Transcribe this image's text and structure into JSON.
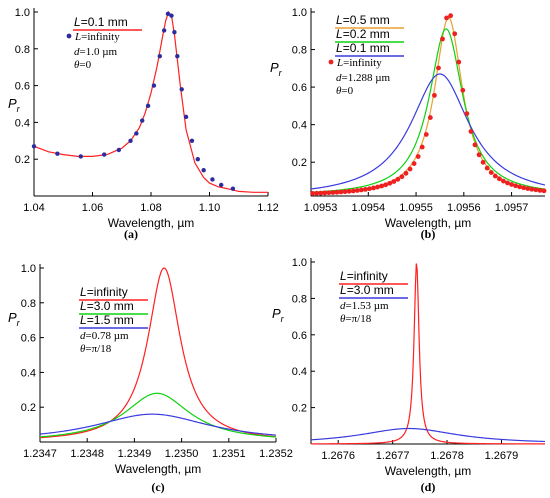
{
  "colors": {
    "red": "#ff2020",
    "green": "#10d010",
    "blue": "#3a3ae0",
    "orange": "#e8a030",
    "dot_blue": "#2c2ca0",
    "dot_red": "#ee2020",
    "axis": "#000000"
  },
  "chart_data": [
    {
      "type": "line",
      "panel_label": "(a)",
      "xlabel": "Wavelength, µm",
      "ylabel": "P",
      "ylabel_sub": "r",
      "xlim": [
        1.04,
        1.12
      ],
      "ylim": [
        0.0,
        1.0
      ],
      "x_ticks": [
        "1.04",
        "1.06",
        "1.08",
        "1.10",
        "1.12"
      ],
      "y_ticks": [
        "0.2",
        "0.4",
        "0.6",
        "0.8",
        "1.0"
      ],
      "legend": [
        {
          "label": "L=0.1 mm",
          "kind": "line",
          "color": "red"
        },
        {
          "label": "L=infinity",
          "kind": "dot",
          "color": "dot_blue"
        }
      ],
      "annotations": [
        "d=1.0 µm",
        "θ=0"
      ],
      "series": [
        {
          "name": "L=0.1 mm",
          "style": "line",
          "color": "red",
          "x": [
            1.04,
            1.045,
            1.05,
            1.055,
            1.06,
            1.065,
            1.07,
            1.073,
            1.076,
            1.078,
            1.08,
            1.082,
            1.084,
            1.085,
            1.086,
            1.087,
            1.088,
            1.09,
            1.092,
            1.095,
            1.098,
            1.1,
            1.103,
            1.106,
            1.11,
            1.115,
            1.12
          ],
          "y": [
            0.27,
            0.24,
            0.225,
            0.215,
            0.215,
            0.225,
            0.26,
            0.3,
            0.37,
            0.45,
            0.56,
            0.7,
            0.87,
            0.95,
            1.0,
            0.98,
            0.88,
            0.6,
            0.36,
            0.18,
            0.1,
            0.07,
            0.05,
            0.04,
            0.025,
            0.02,
            0.02
          ]
        },
        {
          "name": "L=infinity",
          "style": "dots",
          "color": "dot_blue",
          "x": [
            1.04,
            1.048,
            1.056,
            1.064,
            1.069,
            1.073,
            1.075,
            1.077,
            1.079,
            1.081,
            1.083,
            1.0845,
            1.0858,
            1.087,
            1.088,
            1.089,
            1.0905,
            1.092,
            1.094,
            1.096,
            1.098,
            1.101,
            1.104,
            1.108
          ],
          "y": [
            0.27,
            0.23,
            0.215,
            0.225,
            0.25,
            0.3,
            0.34,
            0.41,
            0.49,
            0.6,
            0.76,
            0.9,
            0.99,
            0.98,
            0.89,
            0.76,
            0.58,
            0.43,
            0.3,
            0.2,
            0.14,
            0.09,
            0.06,
            0.04
          ]
        }
      ]
    },
    {
      "type": "line",
      "panel_label": "(b)",
      "xlabel": "Wavelength, µm",
      "ylabel": "P",
      "ylabel_sub": "r",
      "xlim": [
        1.09528,
        1.09577
      ],
      "ylim": [
        0.02,
        1.0
      ],
      "x_ticks": [
        {
          "v": 1.0953,
          "label": "1.0953"
        },
        {
          "v": 1.0954,
          "label": "1.0954"
        },
        {
          "v": 1.0955,
          "label": "1.0955"
        },
        {
          "v": 1.0956,
          "label": "1.0956"
        },
        {
          "v": 1.0957,
          "label": "1.0957"
        }
      ],
      "y_ticks": [
        "0.2",
        "0.4",
        "0.6",
        "0.8",
        "1.0"
      ],
      "legend": [
        {
          "label": "L=0.5 mm",
          "kind": "line",
          "color": "orange"
        },
        {
          "label": "L=0.2 mm",
          "kind": "line",
          "color": "green"
        },
        {
          "label": "L=0.1 mm",
          "kind": "line",
          "color": "blue"
        },
        {
          "label": "L=infinity",
          "kind": "dot",
          "color": "dot_red"
        }
      ],
      "annotations": [
        "d=1.288 µm",
        "θ=0"
      ],
      "series": [
        {
          "name": "L=0.5 mm",
          "style": "lorentz",
          "color": "orange",
          "center": 1.095568,
          "width": 3.6e-05,
          "peak": 0.97,
          "base": 0.02
        },
        {
          "name": "L=0.2 mm",
          "style": "lorentz",
          "color": "green",
          "center": 1.095563,
          "width": 4.3e-05,
          "peak": 0.91,
          "base": 0.02
        },
        {
          "name": "L=0.1 mm",
          "style": "lorentz",
          "color": "blue",
          "center": 1.09555,
          "width": 7.5e-05,
          "peak": 0.67,
          "base": 0.01
        },
        {
          "name": "L=infinity",
          "style": "lorentz-dots",
          "color": "dot_red",
          "center": 1.095569,
          "width": 3.4e-05,
          "peak": 0.99,
          "base": 0.02,
          "step": 8.5e-06
        }
      ]
    },
    {
      "type": "line",
      "panel_label": "(c)",
      "xlabel": "Wavelength, µm",
      "ylabel": "P",
      "ylabel_sub": "r",
      "xlim": [
        1.2347,
        1.2352
      ],
      "ylim": [
        0.0,
        1.0
      ],
      "x_ticks": [
        {
          "v": 1.2347,
          "label": "1.2347"
        },
        {
          "v": 1.2348,
          "label": "1.2348"
        },
        {
          "v": 1.2349,
          "label": "1.2349"
        },
        {
          "v": 1.235,
          "label": "1.2350"
        },
        {
          "v": 1.2351,
          "label": "1.2351"
        },
        {
          "v": 1.2352,
          "label": "1.2352"
        }
      ],
      "y_ticks": [
        "0.2",
        "0.4",
        "0.6",
        "0.8",
        "1.0"
      ],
      "legend": [
        {
          "label": "L=infinity",
          "kind": "line",
          "color": "red"
        },
        {
          "label": "L=3.0 mm",
          "kind": "line",
          "color": "green"
        },
        {
          "label": "L=1.5 mm",
          "kind": "line",
          "color": "blue"
        }
      ],
      "annotations": [
        "d=0.78 µm",
        "θ=π/18"
      ],
      "series": [
        {
          "name": "L=infinity",
          "style": "lorentz",
          "color": "red",
          "center": 1.234963,
          "width": 4.2e-05,
          "peak": 1.0,
          "base": 0.0
        },
        {
          "name": "L=3.0 mm",
          "style": "lorentz",
          "color": "green",
          "center": 1.234948,
          "width": 8.5e-05,
          "peak": 0.28,
          "base": 0.0
        },
        {
          "name": "L=1.5 mm",
          "style": "lorentz",
          "color": "blue",
          "center": 1.234938,
          "width": 0.00015,
          "peak": 0.16,
          "base": 0.0
        }
      ]
    },
    {
      "type": "line",
      "panel_label": "(d)",
      "xlabel": "Wavelength, µm",
      "ylabel": "P",
      "ylabel_sub": "r",
      "xlim": [
        1.26755,
        1.26798
      ],
      "ylim": [
        0.0,
        1.0
      ],
      "x_ticks": [
        {
          "v": 1.2676,
          "label": "1.2676"
        },
        {
          "v": 1.2677,
          "label": "1.2677"
        },
        {
          "v": 1.2678,
          "label": "1.2678"
        },
        {
          "v": 1.2679,
          "label": "1.2679"
        }
      ],
      "y_ticks": [
        "0.2",
        "0.4",
        "0.6",
        "0.8",
        "1.0"
      ],
      "legend": [
        {
          "label": "L=infinity",
          "kind": "line",
          "color": "red"
        },
        {
          "label": "L=3.0 mm",
          "kind": "line",
          "color": "blue"
        }
      ],
      "annotations": [
        "d=1.53 µm",
        "θ=π/18"
      ],
      "series": [
        {
          "name": "L=infinity",
          "style": "lorentz",
          "color": "red",
          "center": 1.267744,
          "width": 5.5e-06,
          "peak": 1.0,
          "base": 0.0
        },
        {
          "name": "L=3.0 mm",
          "style": "lorentz",
          "color": "blue",
          "center": 1.26773,
          "width": 0.00011,
          "peak": 0.085,
          "base": 0.0
        }
      ]
    }
  ]
}
